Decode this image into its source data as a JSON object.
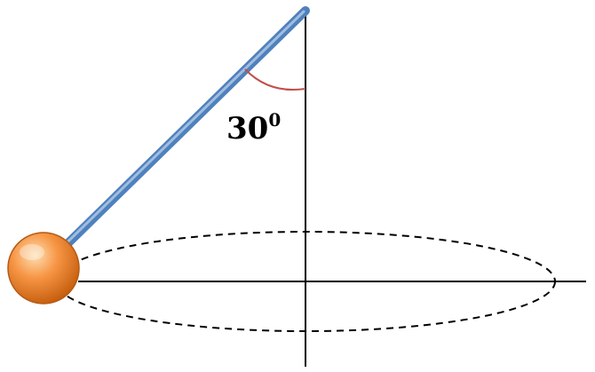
{
  "diagram": {
    "angle_value": "30",
    "angle_unit": "0",
    "colors": {
      "rod": "#4f81bd",
      "rod_highlight": "#a9c4e4",
      "bob_light": "#fbd19a",
      "bob_mid": "#f79646",
      "bob_dark": "#c65f0e",
      "bob_outline": "#b55a14",
      "angle_arc": "#c0504d",
      "axes": "#000000",
      "orbit": "#000000"
    },
    "icons": [
      "pendulum-bob",
      "rod",
      "circular-orbit",
      "vertical-axis",
      "horizontal-axis",
      "angle-arc"
    ]
  }
}
